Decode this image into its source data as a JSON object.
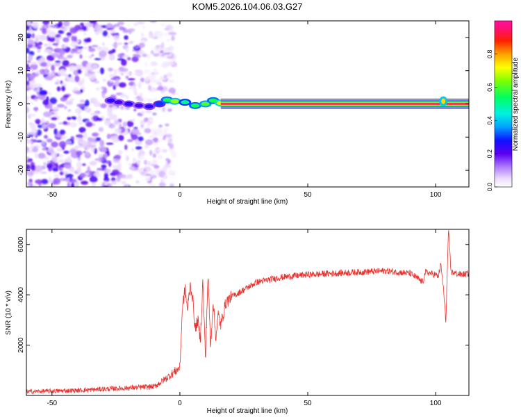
{
  "title": "KOM5.2026.104.06.03.G27",
  "colors": {
    "snr_line": "#e8322e",
    "frame": "#000000",
    "background": "#ffffff"
  },
  "chart_data": [
    {
      "type": "heatmap",
      "name": "spectrogram",
      "xlabel": "Height of straight line (km)",
      "ylabel": "Frequency (Hz)",
      "xlim": [
        -60,
        113
      ],
      "ylim": [
        -25,
        25
      ],
      "xticks": [
        -50,
        0,
        50,
        100
      ],
      "yticks": [
        -20,
        -10,
        0,
        10,
        20
      ],
      "noise_region_x": [
        -60,
        -8
      ],
      "trace": [
        {
          "x": -27,
          "y": 1.0,
          "v": 0.25
        },
        {
          "x": -24,
          "y": 0.5,
          "v": 0.22
        },
        {
          "x": -20,
          "y": 0.0,
          "v": 0.25
        },
        {
          "x": -16,
          "y": -0.5,
          "v": 0.22
        },
        {
          "x": -12,
          "y": -0.8,
          "v": 0.25
        },
        {
          "x": -8,
          "y": 0.0,
          "v": 0.3
        },
        {
          "x": -5,
          "y": 1.2,
          "v": 0.55
        },
        {
          "x": -2,
          "y": 0.8,
          "v": 0.65
        },
        {
          "x": 2,
          "y": 0.5,
          "v": 0.5
        },
        {
          "x": 6,
          "y": -0.5,
          "v": 0.55
        },
        {
          "x": 10,
          "y": 0.0,
          "v": 0.6
        },
        {
          "x": 13,
          "y": 1.0,
          "v": 0.55
        },
        {
          "x": 16,
          "y": 0.3,
          "v": 0.7
        },
        {
          "x": 20,
          "y": 0.0,
          "v": 0.9
        }
      ],
      "steady_line": {
        "x_start": 16,
        "x_end": 113,
        "y": 0.0,
        "v": 1.0
      },
      "spike": {
        "x": 103,
        "y": 0.8,
        "v": 0.75
      },
      "colorbar": {
        "label": "Normalized spectral amplitude",
        "range": [
          0.0,
          1.0
        ],
        "ticks": [
          "0.0",
          "0.2",
          "0.4",
          "0.6",
          "0.8"
        ]
      }
    },
    {
      "type": "line",
      "name": "snr",
      "xlabel": "Height of straight line (km)",
      "ylabel": "SNR (10 * v/v)",
      "xlim": [
        -60,
        113
      ],
      "ylim": [
        0,
        6600
      ],
      "xticks": [
        -50,
        0,
        50,
        100
      ],
      "yticks": [
        2000,
        4000,
        6000
      ],
      "series": [
        {
          "name": "SNR",
          "x": [
            -60,
            -40,
            -20,
            -10,
            -5,
            -2,
            0,
            1,
            2,
            3,
            4,
            5,
            6,
            7,
            8,
            9,
            10,
            11,
            12,
            13,
            14,
            15,
            16,
            18,
            20,
            25,
            30,
            40,
            50,
            60,
            70,
            80,
            90,
            95,
            96,
            100,
            101,
            102,
            103,
            104,
            105,
            106,
            108,
            110,
            113
          ],
          "y": [
            150,
            200,
            300,
            350,
            700,
            950,
            1100,
            3500,
            4200,
            3400,
            4400,
            3900,
            2600,
            3000,
            2200,
            4600,
            1400,
            4900,
            1900,
            3800,
            2300,
            3200,
            2800,
            3700,
            3900,
            4200,
            4500,
            4700,
            4800,
            4850,
            4900,
            4950,
            4850,
            4500,
            4900,
            4800,
            4700,
            5200,
            4300,
            2900,
            6600,
            4900,
            4850,
            4800,
            4850
          ]
        }
      ]
    }
  ]
}
